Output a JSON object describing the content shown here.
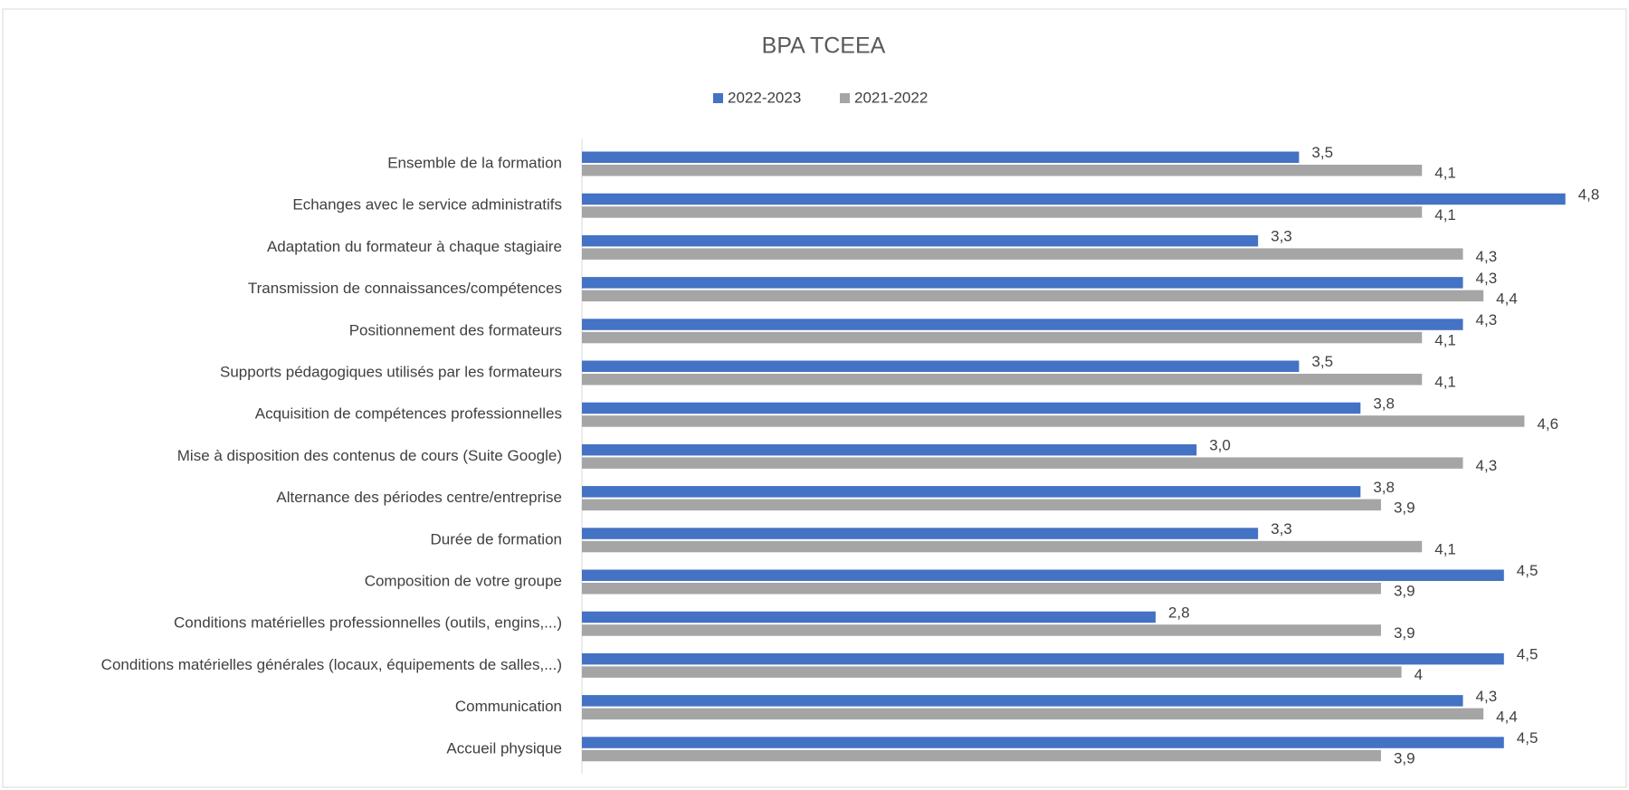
{
  "chart_data": {
    "type": "hbar",
    "title": "BPA TCEEA",
    "categories": [
      "Ensemble de la formation",
      "Echanges avec le service administratifs",
      "Adaptation du formateur à chaque stagiaire",
      "Transmission de connaissances/compétences",
      "Positionnement des formateurs",
      "Supports pédagogiques utilisés par les formateurs",
      "Acquisition de compétences professionnelles",
      "Mise à disposition des contenus de cours (Suite Google)",
      "Alternance des périodes centre/entreprise",
      "Durée de formation",
      "Composition de votre groupe",
      "Conditions matérielles professionnelles (outils, engins,...)",
      "Conditions matérielles générales (locaux, équipements de salles,...)",
      "Communication",
      "Accueil physique"
    ],
    "series": [
      {
        "name": "2022-2023",
        "color": "#4472c4",
        "values": [
          3.5,
          4.8,
          3.3,
          4.3,
          4.3,
          3.5,
          3.8,
          3.0,
          3.8,
          3.3,
          4.5,
          2.8,
          4.5,
          4.3,
          4.5
        ],
        "value_labels": [
          "3,5",
          "4,8",
          "3,3",
          "4,3",
          "4,3",
          "3,5",
          "3,8",
          "3,0",
          "3,8",
          "3,3",
          "4,5",
          "2,8",
          "4,5",
          "4,3",
          "4,5"
        ]
      },
      {
        "name": "2021-2022",
        "color": "#a5a5a5",
        "values": [
          4.1,
          4.1,
          4.3,
          4.4,
          4.1,
          4.1,
          4.6,
          4.3,
          3.9,
          4.1,
          3.9,
          3.9,
          4,
          4.4,
          3.9
        ],
        "value_labels": [
          "4,1",
          "4,1",
          "4,3",
          "4,4",
          "4,1",
          "4,1",
          "4,6",
          "4,3",
          "3,9",
          "4,1",
          "3,9",
          "3,9",
          "4",
          "4,4",
          "3,9"
        ]
      }
    ],
    "xlim": [
      0,
      5
    ],
    "legend": "top"
  }
}
